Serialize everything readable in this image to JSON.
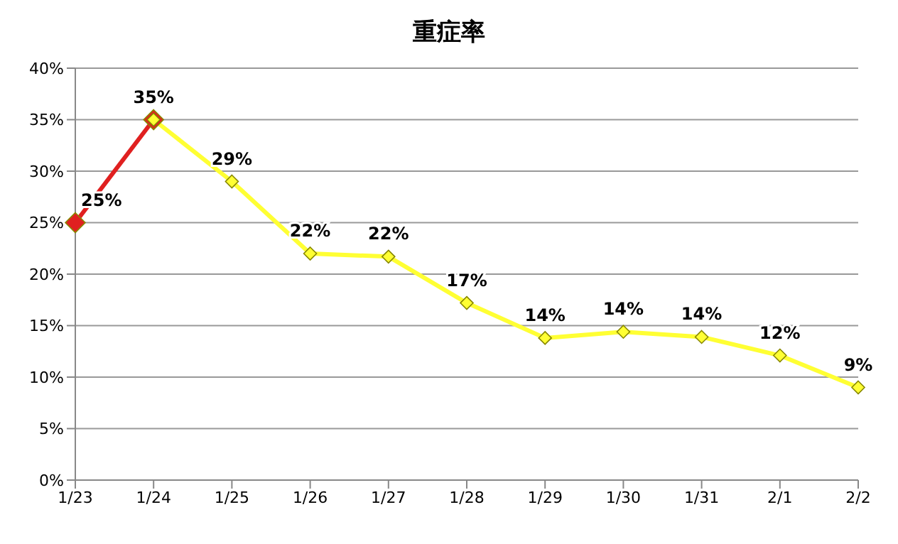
{
  "chart_data": {
    "type": "line",
    "title": "重症率",
    "categories": [
      "1/23",
      "1/24",
      "1/25",
      "1/26",
      "1/27",
      "1/28",
      "1/29",
      "1/30",
      "1/31",
      "2/1",
      "2/2"
    ],
    "series": [
      {
        "color": "#e02020",
        "values": [
          25,
          35,
          null,
          null,
          null,
          null,
          null,
          null,
          null,
          null,
          null
        ],
        "value_labels": [
          "25%",
          null,
          null,
          null,
          null,
          null,
          null,
          null,
          null,
          null,
          null
        ]
      },
      {
        "color": "#ffff33",
        "values": [
          null,
          35,
          29,
          22,
          21.7,
          17.2,
          13.8,
          14.4,
          13.9,
          12.1,
          9
        ],
        "value_labels": [
          null,
          "35%",
          "29%",
          "22%",
          "22%",
          "17%",
          "14%",
          "14%",
          "14%",
          "12%",
          "9%"
        ]
      }
    ],
    "ylim": [
      0,
      40
    ],
    "yticks": [
      {
        "value": 0,
        "label": "0%"
      },
      {
        "value": 5,
        "label": "5%"
      },
      {
        "value": 10,
        "label": "10%"
      },
      {
        "value": 15,
        "label": "15%"
      },
      {
        "value": 20,
        "label": "20%"
      },
      {
        "value": 25,
        "label": "25%"
      },
      {
        "value": 30,
        "label": "30%"
      },
      {
        "value": 35,
        "label": "35%"
      },
      {
        "value": 40,
        "label": "40%"
      }
    ],
    "grid": "y",
    "marker": "diamond",
    "line_style": "solid"
  }
}
